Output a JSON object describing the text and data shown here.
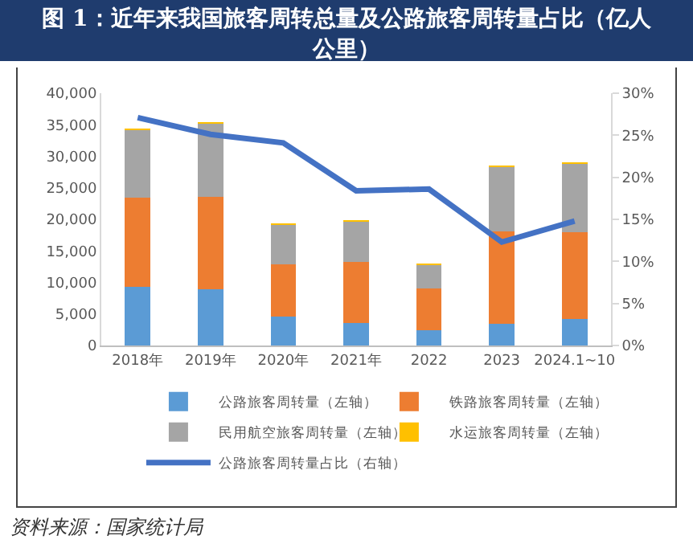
{
  "chart_data": {
    "type": "bar",
    "stacked": true,
    "title": "图 1：近年来我国旅客周转总量及公路旅客周转量占比（亿人公里）",
    "categories": [
      "2018年",
      "2019年",
      "2020年",
      "2021年",
      "2022",
      "2023",
      "2024.1~10"
    ],
    "series": [
      {
        "name": "公路旅客周转量（左轴）",
        "color": "#5b9bd5",
        "values": [
          9300,
          8900,
          4600,
          3600,
          2400,
          3400,
          4200
        ]
      },
      {
        "name": "铁路旅客周转量（左轴）",
        "color": "#ed7d31",
        "values": [
          14200,
          14700,
          8300,
          9600,
          6600,
          14700,
          13800
        ]
      },
      {
        "name": "民用航空旅客周转量（左轴）",
        "color": "#a5a5a5",
        "values": [
          10700,
          11700,
          6300,
          6500,
          3900,
          10300,
          11000
        ]
      },
      {
        "name": "水运旅客周转量（左轴）",
        "color": "#ffc000",
        "values": [
          80,
          80,
          30,
          30,
          20,
          40,
          40
        ]
      },
      {
        "name": "公路旅客周转量占比（右轴）",
        "type": "line",
        "axis": "y2",
        "color": "#4472c4",
        "marker": "none",
        "values": [
          27.1,
          25.1,
          24.1,
          18.4,
          18.6,
          12.3,
          14.8
        ]
      }
    ],
    "ylim": [
      0,
      40000
    ],
    "yticks": [
      0,
      {
        "value": 5000,
        "label": "5,000"
      },
      {
        "value": 10000,
        "label": "10,000"
      },
      {
        "value": 15000,
        "label": "15,000"
      },
      {
        "value": 20000,
        "label": "20,000"
      },
      {
        "value": 25000,
        "label": "25,000"
      },
      {
        "value": 30000,
        "label": "30,000"
      },
      {
        "value": 35000,
        "label": "35,000"
      },
      {
        "value": 40000,
        "label": "40,000"
      }
    ],
    "y2lim": [
      0,
      30
    ],
    "y2ticks": [
      {
        "value": 0,
        "label": "0%"
      },
      {
        "value": 5,
        "label": "5%"
      },
      {
        "value": 10,
        "label": "10%"
      },
      {
        "value": 15,
        "label": "15%"
      },
      {
        "value": 20,
        "label": "20%"
      },
      {
        "value": 25,
        "label": "25%"
      },
      {
        "value": 30,
        "label": "30%"
      }
    ],
    "grid": false,
    "legend": "bottom",
    "annotations": [
      "资料来源：国家统计局"
    ]
  }
}
